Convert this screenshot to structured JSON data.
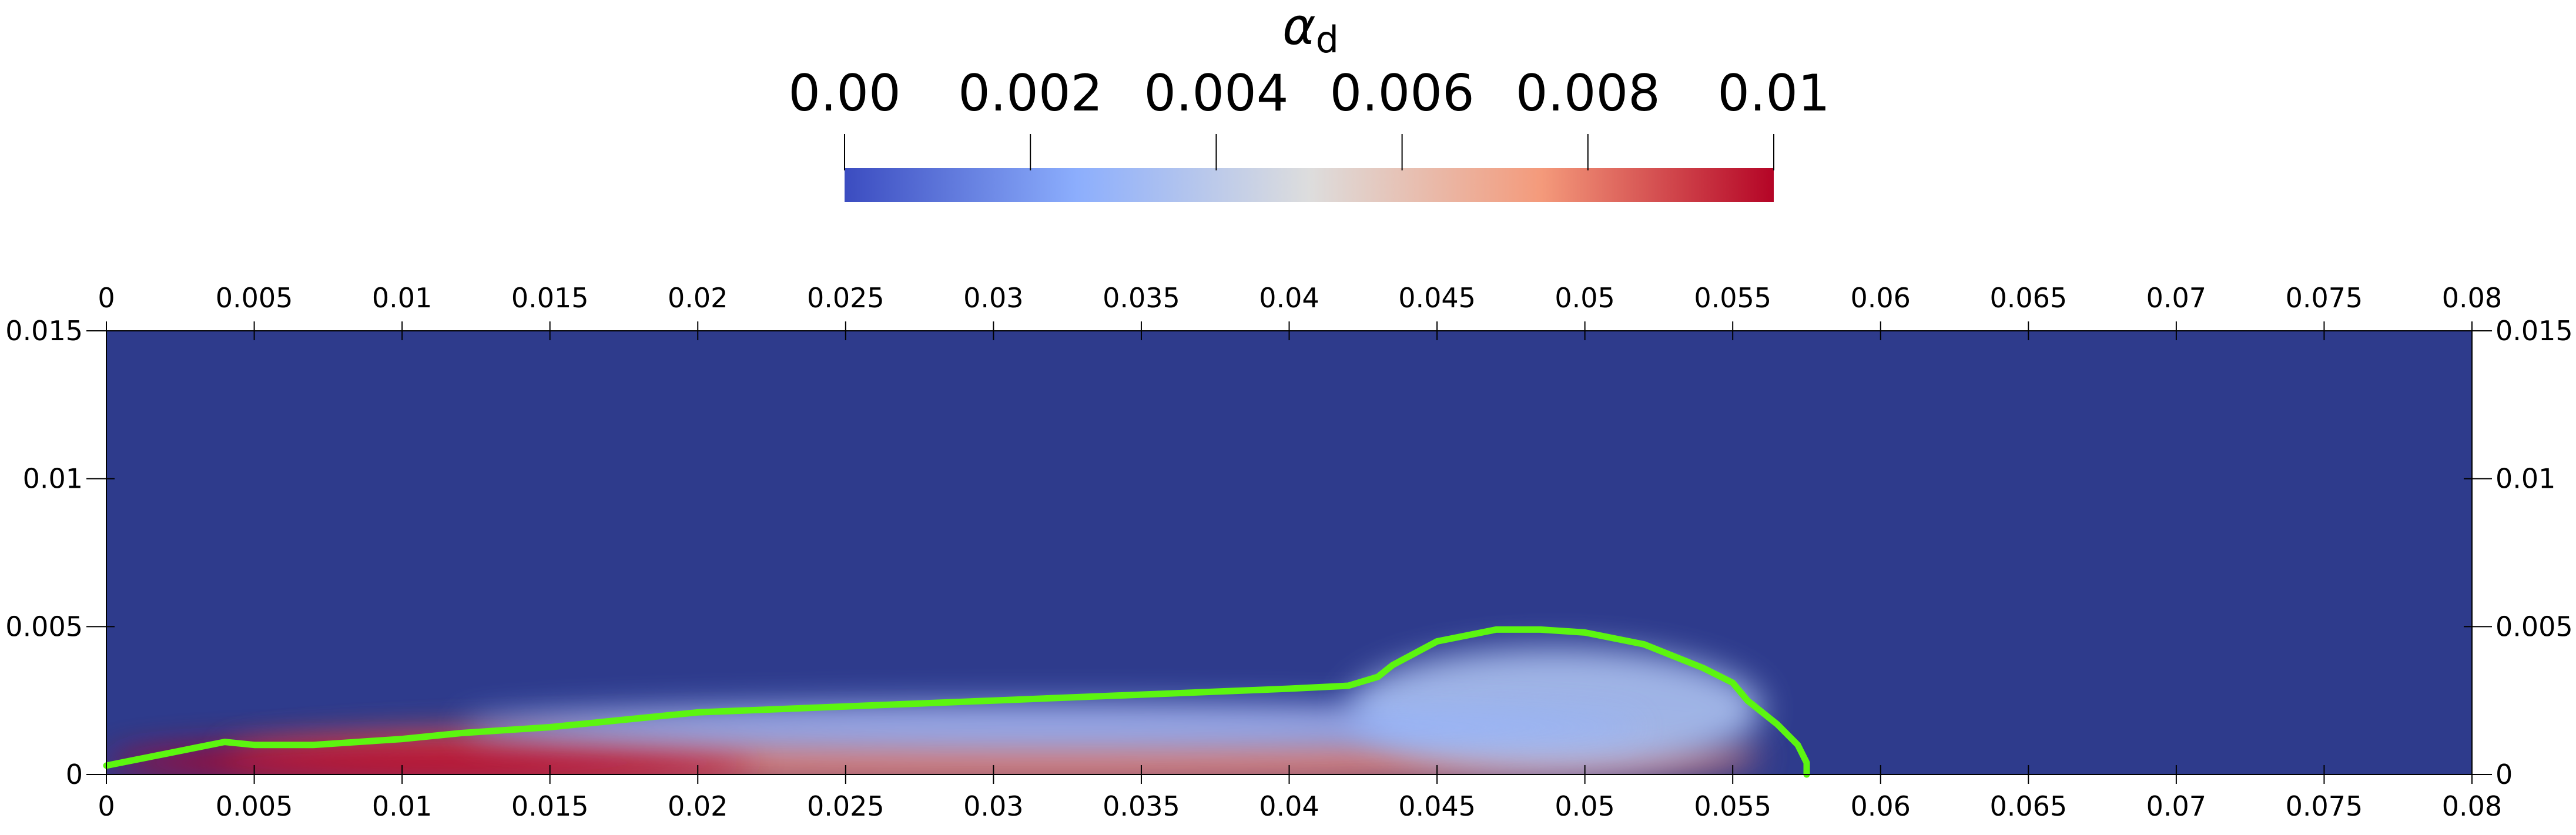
{
  "chart_data": {
    "type": "heatmap",
    "title": "",
    "colorbar": {
      "title_main": "α",
      "title_sub": "d",
      "range": [
        0.0,
        0.01
      ],
      "ticks": [
        {
          "value": 0.0,
          "label": "0.00"
        },
        {
          "value": 0.002,
          "label": "0.002"
        },
        {
          "value": 0.004,
          "label": "0.004"
        },
        {
          "value": 0.006,
          "label": "0.006"
        },
        {
          "value": 0.008,
          "label": "0.008"
        },
        {
          "value": 0.01,
          "label": "0.01"
        }
      ],
      "colormap": [
        {
          "t": 0.0,
          "color": "#3b4cc0"
        },
        {
          "t": 0.25,
          "color": "#8caefd"
        },
        {
          "t": 0.5,
          "color": "#dddddd"
        },
        {
          "t": 0.75,
          "color": "#f49a7b"
        },
        {
          "t": 1.0,
          "color": "#b40426"
        }
      ]
    },
    "xlim": [
      0.0,
      0.08
    ],
    "ylim": [
      0.0,
      0.015
    ],
    "xticks": [
      {
        "value": 0.0,
        "label": "0"
      },
      {
        "value": 0.005,
        "label": "0.005"
      },
      {
        "value": 0.01,
        "label": "0.01"
      },
      {
        "value": 0.015,
        "label": "0.015"
      },
      {
        "value": 0.02,
        "label": "0.02"
      },
      {
        "value": 0.025,
        "label": "0.025"
      },
      {
        "value": 0.03,
        "label": "0.03"
      },
      {
        "value": 0.035,
        "label": "0.035"
      },
      {
        "value": 0.04,
        "label": "0.04"
      },
      {
        "value": 0.045,
        "label": "0.045"
      },
      {
        "value": 0.05,
        "label": "0.05"
      },
      {
        "value": 0.055,
        "label": "0.055"
      },
      {
        "value": 0.06,
        "label": "0.06"
      },
      {
        "value": 0.065,
        "label": "0.065"
      },
      {
        "value": 0.07,
        "label": "0.07"
      },
      {
        "value": 0.075,
        "label": "0.075"
      },
      {
        "value": 0.08,
        "label": "0.08"
      }
    ],
    "yticks": [
      {
        "value": 0.0,
        "label": "0"
      },
      {
        "value": 0.005,
        "label": "0.005"
      },
      {
        "value": 0.01,
        "label": "0.01"
      },
      {
        "value": 0.015,
        "label": "0.015"
      }
    ],
    "background_color": "#2e3b8c",
    "field_blobs": [
      {
        "name": "near-wall-layer",
        "cx": 0.03,
        "cy": 0.0006,
        "rx": 0.026,
        "ry": 0.0011,
        "value": 0.008
      },
      {
        "name": "core-layer-left",
        "cx": 0.011,
        "cy": 0.0004,
        "rx": 0.011,
        "ry": 0.0007,
        "value": 0.0105
      },
      {
        "name": "head-plume",
        "cx": 0.049,
        "cy": 0.0022,
        "rx": 0.007,
        "ry": 0.0021,
        "value": 0.0035
      },
      {
        "name": "trailing-band",
        "cx": 0.032,
        "cy": 0.0016,
        "rx": 0.02,
        "ry": 0.0008,
        "value": 0.0028
      }
    ],
    "contour": {
      "color": "#5cf510",
      "points": [
        [
          0.0,
          0.0003
        ],
        [
          0.001,
          0.0005
        ],
        [
          0.002,
          0.0007
        ],
        [
          0.003,
          0.0009
        ],
        [
          0.004,
          0.0011
        ],
        [
          0.005,
          0.001
        ],
        [
          0.007,
          0.001
        ],
        [
          0.01,
          0.0012
        ],
        [
          0.012,
          0.0014
        ],
        [
          0.015,
          0.0016
        ],
        [
          0.02,
          0.0021
        ],
        [
          0.025,
          0.0023
        ],
        [
          0.03,
          0.0025
        ],
        [
          0.035,
          0.0027
        ],
        [
          0.04,
          0.0029
        ],
        [
          0.042,
          0.003
        ],
        [
          0.043,
          0.0033
        ],
        [
          0.0435,
          0.0037
        ],
        [
          0.045,
          0.0045
        ],
        [
          0.047,
          0.0049
        ],
        [
          0.0485,
          0.0049
        ],
        [
          0.05,
          0.0048
        ],
        [
          0.052,
          0.0044
        ],
        [
          0.054,
          0.0036
        ],
        [
          0.055,
          0.0031
        ],
        [
          0.0555,
          0.0025
        ],
        [
          0.0565,
          0.0017
        ],
        [
          0.0572,
          0.001
        ],
        [
          0.0575,
          0.0004
        ],
        [
          0.0575,
          0.0
        ]
      ]
    }
  }
}
